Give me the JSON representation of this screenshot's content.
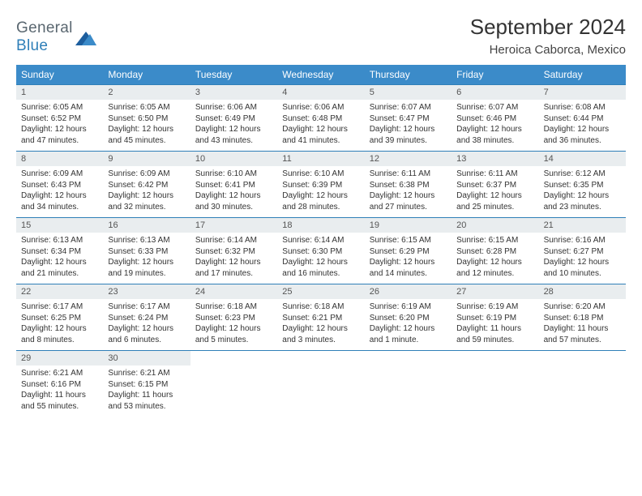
{
  "brand": {
    "part1": "General",
    "part2": "Blue"
  },
  "title": "September 2024",
  "subtitle": "Heroica Caborca, Mexico",
  "colors": {
    "header_bg": "#3b8bc9",
    "header_text": "#ffffff",
    "daynum_bg": "#e9edef",
    "week_border": "#2f7fb8",
    "body_text": "#333333",
    "brand_gray": "#5a6770",
    "brand_blue": "#2f7fb8"
  },
  "dow": [
    "Sunday",
    "Monday",
    "Tuesday",
    "Wednesday",
    "Thursday",
    "Friday",
    "Saturday"
  ],
  "weeks": [
    [
      {
        "n": "1",
        "sr": "Sunrise: 6:05 AM",
        "ss": "Sunset: 6:52 PM",
        "dl": "Daylight: 12 hours and 47 minutes."
      },
      {
        "n": "2",
        "sr": "Sunrise: 6:05 AM",
        "ss": "Sunset: 6:50 PM",
        "dl": "Daylight: 12 hours and 45 minutes."
      },
      {
        "n": "3",
        "sr": "Sunrise: 6:06 AM",
        "ss": "Sunset: 6:49 PM",
        "dl": "Daylight: 12 hours and 43 minutes."
      },
      {
        "n": "4",
        "sr": "Sunrise: 6:06 AM",
        "ss": "Sunset: 6:48 PM",
        "dl": "Daylight: 12 hours and 41 minutes."
      },
      {
        "n": "5",
        "sr": "Sunrise: 6:07 AM",
        "ss": "Sunset: 6:47 PM",
        "dl": "Daylight: 12 hours and 39 minutes."
      },
      {
        "n": "6",
        "sr": "Sunrise: 6:07 AM",
        "ss": "Sunset: 6:46 PM",
        "dl": "Daylight: 12 hours and 38 minutes."
      },
      {
        "n": "7",
        "sr": "Sunrise: 6:08 AM",
        "ss": "Sunset: 6:44 PM",
        "dl": "Daylight: 12 hours and 36 minutes."
      }
    ],
    [
      {
        "n": "8",
        "sr": "Sunrise: 6:09 AM",
        "ss": "Sunset: 6:43 PM",
        "dl": "Daylight: 12 hours and 34 minutes."
      },
      {
        "n": "9",
        "sr": "Sunrise: 6:09 AM",
        "ss": "Sunset: 6:42 PM",
        "dl": "Daylight: 12 hours and 32 minutes."
      },
      {
        "n": "10",
        "sr": "Sunrise: 6:10 AM",
        "ss": "Sunset: 6:41 PM",
        "dl": "Daylight: 12 hours and 30 minutes."
      },
      {
        "n": "11",
        "sr": "Sunrise: 6:10 AM",
        "ss": "Sunset: 6:39 PM",
        "dl": "Daylight: 12 hours and 28 minutes."
      },
      {
        "n": "12",
        "sr": "Sunrise: 6:11 AM",
        "ss": "Sunset: 6:38 PM",
        "dl": "Daylight: 12 hours and 27 minutes."
      },
      {
        "n": "13",
        "sr": "Sunrise: 6:11 AM",
        "ss": "Sunset: 6:37 PM",
        "dl": "Daylight: 12 hours and 25 minutes."
      },
      {
        "n": "14",
        "sr": "Sunrise: 6:12 AM",
        "ss": "Sunset: 6:35 PM",
        "dl": "Daylight: 12 hours and 23 minutes."
      }
    ],
    [
      {
        "n": "15",
        "sr": "Sunrise: 6:13 AM",
        "ss": "Sunset: 6:34 PM",
        "dl": "Daylight: 12 hours and 21 minutes."
      },
      {
        "n": "16",
        "sr": "Sunrise: 6:13 AM",
        "ss": "Sunset: 6:33 PM",
        "dl": "Daylight: 12 hours and 19 minutes."
      },
      {
        "n": "17",
        "sr": "Sunrise: 6:14 AM",
        "ss": "Sunset: 6:32 PM",
        "dl": "Daylight: 12 hours and 17 minutes."
      },
      {
        "n": "18",
        "sr": "Sunrise: 6:14 AM",
        "ss": "Sunset: 6:30 PM",
        "dl": "Daylight: 12 hours and 16 minutes."
      },
      {
        "n": "19",
        "sr": "Sunrise: 6:15 AM",
        "ss": "Sunset: 6:29 PM",
        "dl": "Daylight: 12 hours and 14 minutes."
      },
      {
        "n": "20",
        "sr": "Sunrise: 6:15 AM",
        "ss": "Sunset: 6:28 PM",
        "dl": "Daylight: 12 hours and 12 minutes."
      },
      {
        "n": "21",
        "sr": "Sunrise: 6:16 AM",
        "ss": "Sunset: 6:27 PM",
        "dl": "Daylight: 12 hours and 10 minutes."
      }
    ],
    [
      {
        "n": "22",
        "sr": "Sunrise: 6:17 AM",
        "ss": "Sunset: 6:25 PM",
        "dl": "Daylight: 12 hours and 8 minutes."
      },
      {
        "n": "23",
        "sr": "Sunrise: 6:17 AM",
        "ss": "Sunset: 6:24 PM",
        "dl": "Daylight: 12 hours and 6 minutes."
      },
      {
        "n": "24",
        "sr": "Sunrise: 6:18 AM",
        "ss": "Sunset: 6:23 PM",
        "dl": "Daylight: 12 hours and 5 minutes."
      },
      {
        "n": "25",
        "sr": "Sunrise: 6:18 AM",
        "ss": "Sunset: 6:21 PM",
        "dl": "Daylight: 12 hours and 3 minutes."
      },
      {
        "n": "26",
        "sr": "Sunrise: 6:19 AM",
        "ss": "Sunset: 6:20 PM",
        "dl": "Daylight: 12 hours and 1 minute."
      },
      {
        "n": "27",
        "sr": "Sunrise: 6:19 AM",
        "ss": "Sunset: 6:19 PM",
        "dl": "Daylight: 11 hours and 59 minutes."
      },
      {
        "n": "28",
        "sr": "Sunrise: 6:20 AM",
        "ss": "Sunset: 6:18 PM",
        "dl": "Daylight: 11 hours and 57 minutes."
      }
    ],
    [
      {
        "n": "29",
        "sr": "Sunrise: 6:21 AM",
        "ss": "Sunset: 6:16 PM",
        "dl": "Daylight: 11 hours and 55 minutes."
      },
      {
        "n": "30",
        "sr": "Sunrise: 6:21 AM",
        "ss": "Sunset: 6:15 PM",
        "dl": "Daylight: 11 hours and 53 minutes."
      },
      null,
      null,
      null,
      null,
      null
    ]
  ]
}
